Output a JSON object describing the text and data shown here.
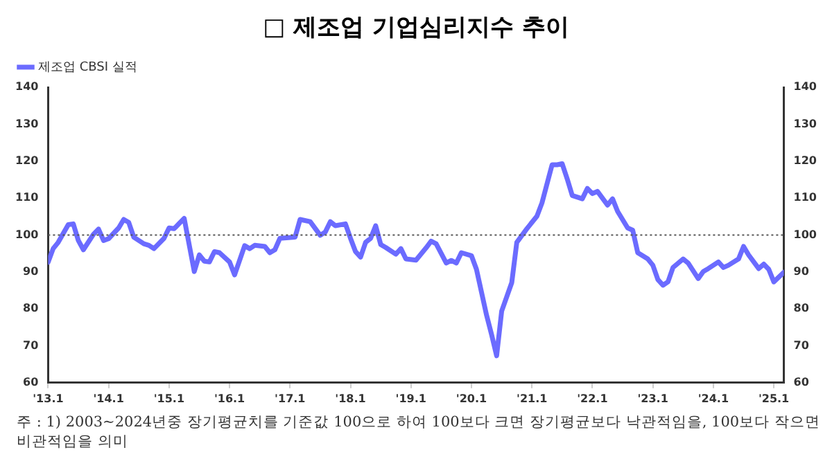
{
  "chart_data": {
    "type": "line",
    "title": "□ 제조업 기업심리지수 추이",
    "x": [
      "2013-01",
      "2013-02",
      "2013-03",
      "2013-05",
      "2013-06",
      "2013-07",
      "2013-08",
      "2013-10",
      "2013-11",
      "2013-12",
      "2014-01",
      "2014-03",
      "2014-04",
      "2014-05",
      "2014-06",
      "2014-08",
      "2014-09",
      "2014-10",
      "2014-12",
      "2015-01",
      "2015-02",
      "2015-04",
      "2015-06",
      "2015-07",
      "2015-08",
      "2015-09",
      "2015-10",
      "2015-11",
      "2016-01",
      "2016-02",
      "2016-04",
      "2016-05",
      "2016-06",
      "2016-08",
      "2016-09",
      "2016-10",
      "2016-11",
      "2017-02",
      "2017-03",
      "2017-05",
      "2017-07",
      "2017-08",
      "2017-09",
      "2017-10",
      "2017-12",
      "2018-01",
      "2018-02",
      "2018-03",
      "2018-04",
      "2018-05",
      "2018-06",
      "2018-07",
      "2018-08",
      "2018-10",
      "2018-11",
      "2018-12",
      "2019-02",
      "2019-04",
      "2019-05",
      "2019-06",
      "2019-08",
      "2019-09",
      "2019-10",
      "2019-11",
      "2020-01",
      "2020-02",
      "2020-04",
      "2020-05",
      "2020-06",
      "2020-07",
      "2020-09",
      "2020-10",
      "2020-12",
      "2021-02",
      "2021-03",
      "2021-05",
      "2021-06",
      "2021-07",
      "2021-08",
      "2021-09",
      "2021-11",
      "2021-12",
      "2022-01",
      "2022-02",
      "2022-04",
      "2022-05",
      "2022-06",
      "2022-08",
      "2022-09",
      "2022-10",
      "2022-12",
      "2023-01",
      "2023-02",
      "2023-03",
      "2023-04",
      "2023-05",
      "2023-07",
      "2023-08",
      "2023-10",
      "2023-11",
      "2023-12",
      "2024-02",
      "2024-03",
      "2024-04",
      "2024-06",
      "2024-07",
      "2024-08",
      "2024-10",
      "2024-11",
      "2024-12",
      "2025-01",
      "2025-03"
    ],
    "series": [
      {
        "name": "제조업 CBSI 실적",
        "color": "#6b6bff",
        "values": [
          92.6,
          96.3,
          98,
          102.8,
          103,
          98.5,
          96,
          100.2,
          101.6,
          98.5,
          99,
          101.9,
          104.2,
          103.4,
          99.4,
          97.6,
          97.2,
          96.3,
          99.1,
          101.9,
          101.7,
          104.5,
          90.1,
          94.6,
          92.9,
          92.7,
          95.5,
          95.2,
          92.7,
          89.2,
          97.1,
          96.3,
          97.2,
          96.9,
          95.2,
          96,
          99.1,
          99.4,
          104.2,
          103.6,
          99.9,
          100.8,
          103.6,
          102.5,
          103,
          99.1,
          95.5,
          94,
          98,
          99.1,
          102.5,
          97.4,
          96.6,
          94.8,
          96.3,
          93.5,
          93.2,
          96.5,
          98.3,
          97.6,
          92.4,
          93.1,
          92.4,
          95.2,
          94.4,
          90.7,
          78.3,
          73,
          67.3,
          79.4,
          87.1,
          98,
          101.7,
          105.1,
          108.7,
          119,
          119,
          119.3,
          115.2,
          110.7,
          109.8,
          112.6,
          111.2,
          111.8,
          108.1,
          109.8,
          106.4,
          101.9,
          101.3,
          95.2,
          93.5,
          91.8,
          87.9,
          86.4,
          87.3,
          91.2,
          93.5,
          92.4,
          88.2,
          90.1,
          90.9,
          92.7,
          91.2,
          91.8,
          93.5,
          96.9,
          94.6,
          90.9,
          92.1,
          90.7,
          87.3,
          89.9
        ]
      }
    ],
    "xlim": [
      "2013-01",
      "2025-03"
    ],
    "xticks": [
      {
        "value": "2013-01",
        "label": "'13.1"
      },
      {
        "value": "2014-01",
        "label": "'14.1"
      },
      {
        "value": "2015-01",
        "label": "'15.1"
      },
      {
        "value": "2016-01",
        "label": "'16.1"
      },
      {
        "value": "2017-01",
        "label": "'17.1"
      },
      {
        "value": "2018-01",
        "label": "'18.1"
      },
      {
        "value": "2019-01",
        "label": "'19.1"
      },
      {
        "value": "2020-01",
        "label": "'20.1"
      },
      {
        "value": "2021-01",
        "label": "'21.1"
      },
      {
        "value": "2022-01",
        "label": "'22.1"
      },
      {
        "value": "2023-01",
        "label": "'23.1"
      },
      {
        "value": "2024-01",
        "label": "'24.1"
      },
      {
        "value": "2025-01",
        "label": "'25.1"
      }
    ],
    "ylim": [
      60,
      140
    ],
    "yticks": [
      60,
      70,
      80,
      90,
      100,
      110,
      120,
      130,
      140
    ],
    "y2lim": [
      60,
      140
    ],
    "y2ticks": [
      60,
      70,
      80,
      90,
      100,
      110,
      120,
      130,
      140
    ],
    "ref_lines": [
      {
        "axis": "y",
        "value": 100,
        "color": "#555555",
        "line_style": "dotted"
      }
    ],
    "legend": "top left",
    "grid": false,
    "marker": "none",
    "line_style": "solid",
    "annotations": [
      "주 : 1) 2003~2024년중 장기평균치를 기준값 100으로 하여 100보다 크면 장기평균보다 낙관적임을, 100보다 작으면 비관적임을 의미"
    ]
  }
}
